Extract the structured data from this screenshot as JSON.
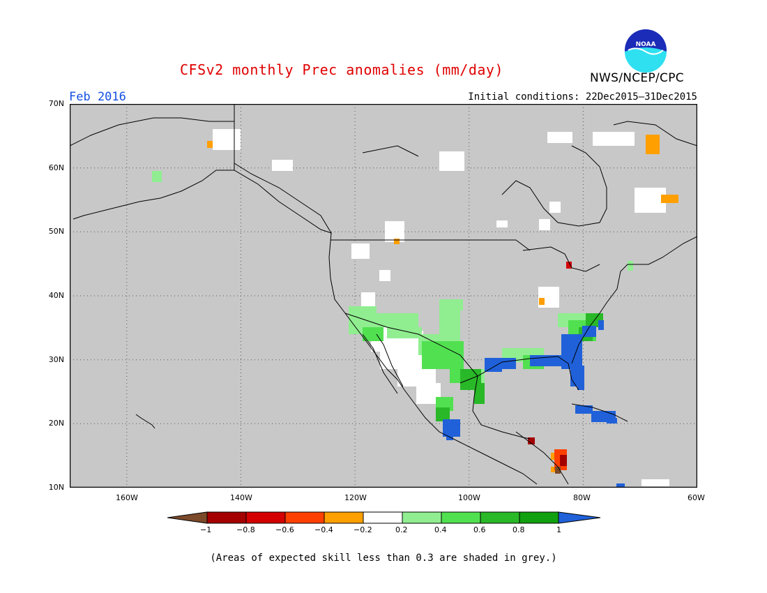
{
  "header": {
    "title": "CFSv2 monthly Prec anomalies (mm/day)",
    "agency": "NWS/NCEP/CPC",
    "month": "Feb 2016",
    "initial_conditions": "Initial conditions: 22Dec2015–31Dec2015"
  },
  "map": {
    "background_color": "#c8c8c8",
    "land_color": "#ffffff",
    "lon_range": [
      -170,
      -60
    ],
    "lat_range": [
      10,
      70
    ],
    "y_axis_labels": [
      "70N",
      "60N",
      "50N",
      "40N",
      "30N",
      "20N",
      "10N"
    ],
    "x_axis_labels": [
      "160W",
      "140W",
      "120W",
      "100W",
      "80W",
      "60W"
    ]
  },
  "colorbar": {
    "labels": [
      "−1",
      "−0.8",
      "−0.6",
      "−0.4",
      "−0.2",
      "0.2",
      "0.4",
      "0.6",
      "0.8",
      "1"
    ],
    "colors": [
      "#7a4a2a",
      "#a40000",
      "#d40000",
      "#ff4000",
      "#ffa000",
      "#ffffff",
      "#90ee90",
      "#50e050",
      "#28b828",
      "#10a010",
      "#2060d8"
    ]
  },
  "footer": {
    "note": "(Areas of expected skill less than 0.3 are shaded in grey.)"
  },
  "logo": {
    "text": "NOAA"
  }
}
